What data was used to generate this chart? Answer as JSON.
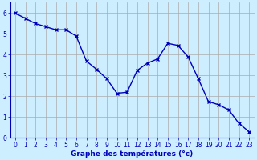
{
  "x": [
    0,
    1,
    2,
    3,
    4,
    5,
    6,
    7,
    8,
    9,
    10,
    11,
    12,
    13,
    14,
    15,
    16,
    17,
    18,
    19,
    20,
    21,
    22,
    23
  ],
  "y": [
    6.0,
    5.75,
    5.5,
    5.35,
    5.2,
    5.2,
    4.9,
    3.7,
    3.3,
    2.85,
    2.15,
    2.2,
    3.25,
    3.6,
    3.8,
    4.55,
    4.45,
    3.9,
    2.85,
    1.75,
    1.6,
    1.35,
    0.7,
    0.3
  ],
  "xlabel": "Graphe des températures (°c)",
  "ylim": [
    0,
    6.5
  ],
  "xlim": [
    -0.5,
    23.5
  ],
  "line_color": "#0000BB",
  "marker": "x",
  "bg_color": "#cceeff",
  "grid_color": "#aaaaaa",
  "tick_label_color": "#0000BB",
  "xlabel_color": "#0000BB",
  "yticks": [
    0,
    1,
    2,
    3,
    4,
    5,
    6
  ],
  "xticks": [
    0,
    1,
    2,
    3,
    4,
    5,
    6,
    7,
    8,
    9,
    10,
    11,
    12,
    13,
    14,
    15,
    16,
    17,
    18,
    19,
    20,
    21,
    22,
    23
  ],
  "tick_fontsize": 5.5,
  "xlabel_fontsize": 6.5,
  "linewidth": 1.0,
  "markersize": 3.5
}
